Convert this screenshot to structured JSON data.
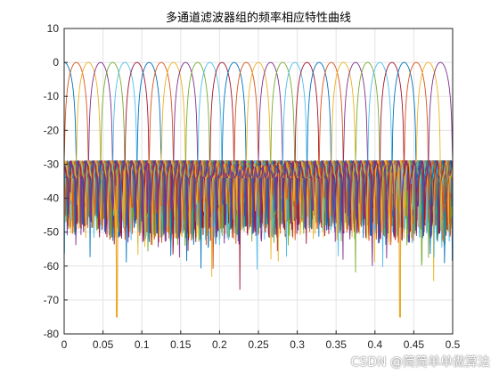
{
  "chart_data": {
    "type": "line",
    "title": "多通道滤波器组的频率相应特性曲线",
    "xlabel": "",
    "ylabel": "",
    "xlim": [
      0,
      0.5
    ],
    "ylim": [
      -80,
      10
    ],
    "xticks": [
      "0",
      "0.05",
      "0.1",
      "0.15",
      "0.2",
      "0.25",
      "0.3",
      "0.35",
      "0.4",
      "0.45",
      "0.5"
    ],
    "xtick_values": [
      0,
      0.05,
      0.1,
      0.15,
      0.2,
      0.25,
      0.3,
      0.35,
      0.4,
      0.45,
      0.5
    ],
    "yticks": [
      "10",
      "0",
      "-10",
      "-20",
      "-30",
      "-40",
      "-50",
      "-60",
      "-70",
      "-80"
    ],
    "ytick_values": [
      10,
      0,
      -10,
      -20,
      -30,
      -40,
      -50,
      -60,
      -70,
      -80
    ],
    "grid": true,
    "num_channels": 32,
    "channel_spacing": 0.015625,
    "passband_peak_db": 0,
    "sidelobe_level_db": -30,
    "deep_nulls": [
      {
        "x": 0.068,
        "y": -75
      },
      {
        "x": 0.432,
        "y": -75
      }
    ],
    "colors": [
      "#0072BD",
      "#D95319",
      "#EDB120",
      "#7E2F8E",
      "#77AC30",
      "#4DBEEE",
      "#A2142F"
    ]
  },
  "watermark": "CSDN @简简单单做算法"
}
